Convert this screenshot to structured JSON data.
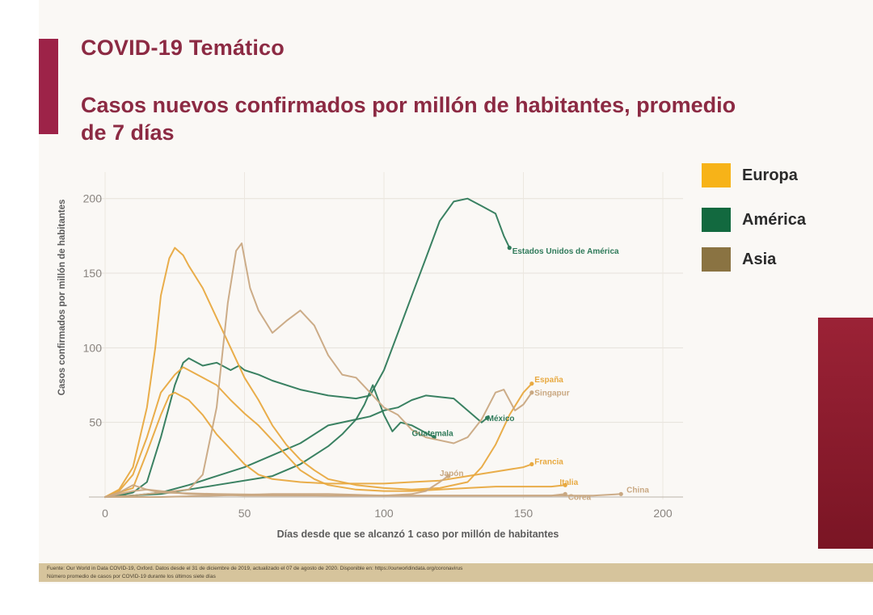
{
  "header": {
    "title": "COVID-19 Temático"
  },
  "colors": {
    "brand": "#9d2348",
    "europa": "#f2b134",
    "america": "#1a6b47",
    "asia": "#8a7440",
    "europa_line": "#e8a940",
    "america_line": "#2f7a5a",
    "asia_line": "#c9a882"
  },
  "legend": [
    {
      "label": "Europa",
      "color": "#f7b318"
    },
    {
      "label": "América",
      "color": "#12693f"
    },
    {
      "label": "Asia",
      "color": "#8a7342"
    }
  ],
  "footer": {
    "source": "Fuente: Our World in Data COVID-19, Oxford. Datos desde el 31 de diciembre de 2019, actualizado el 07 de agosto de 2020. Disponible en: https://ourworldindata.org/coronavirus",
    "note": "Número promedio de casos por COVID-19 durante los últimos siete días"
  },
  "chart_data": {
    "type": "line",
    "title": "Casos nuevos confirmados por millón de habitantes, promedio de 7 días",
    "xlabel": "Días desde que se alcanzó 1 caso por millón de habitantes",
    "ylabel": "Casos confirmados por millón de habitantes",
    "xlim": [
      0,
      200
    ],
    "ylim": [
      0,
      215
    ],
    "xticks": [
      0,
      50,
      100,
      150,
      200
    ],
    "yticks": [
      50,
      100,
      150,
      200
    ],
    "grid": true,
    "legend_position": "right",
    "series": [
      {
        "name": "Estados Unidos de América",
        "group": "america",
        "points": [
          [
            0,
            0
          ],
          [
            5,
            1
          ],
          [
            10,
            3
          ],
          [
            15,
            10
          ],
          [
            20,
            40
          ],
          [
            25,
            75
          ],
          [
            28,
            90
          ],
          [
            30,
            93
          ],
          [
            35,
            88
          ],
          [
            40,
            90
          ],
          [
            45,
            85
          ],
          [
            48,
            88
          ],
          [
            50,
            85
          ],
          [
            55,
            82
          ],
          [
            60,
            78
          ],
          [
            70,
            72
          ],
          [
            80,
            68
          ],
          [
            90,
            66
          ],
          [
            95,
            68
          ],
          [
            100,
            85
          ],
          [
            105,
            110
          ],
          [
            110,
            135
          ],
          [
            115,
            160
          ],
          [
            120,
            185
          ],
          [
            125,
            198
          ],
          [
            130,
            200
          ],
          [
            135,
            195
          ],
          [
            140,
            190
          ],
          [
            143,
            175
          ],
          [
            145,
            167
          ]
        ]
      },
      {
        "name": "México",
        "group": "america",
        "points": [
          [
            0,
            0
          ],
          [
            10,
            1
          ],
          [
            20,
            3
          ],
          [
            30,
            8
          ],
          [
            40,
            14
          ],
          [
            50,
            20
          ],
          [
            60,
            28
          ],
          [
            70,
            36
          ],
          [
            80,
            48
          ],
          [
            90,
            52
          ],
          [
            95,
            54
          ],
          [
            100,
            58
          ],
          [
            105,
            60
          ],
          [
            110,
            65
          ],
          [
            115,
            68
          ],
          [
            120,
            67
          ],
          [
            125,
            66
          ],
          [
            130,
            58
          ],
          [
            135,
            50
          ],
          [
            137,
            53
          ]
        ]
      },
      {
        "name": "Guatemala",
        "group": "america",
        "points": [
          [
            0,
            0
          ],
          [
            20,
            2
          ],
          [
            40,
            8
          ],
          [
            60,
            14
          ],
          [
            70,
            22
          ],
          [
            80,
            34
          ],
          [
            85,
            42
          ],
          [
            90,
            52
          ],
          [
            93,
            62
          ],
          [
            96,
            75
          ],
          [
            100,
            55
          ],
          [
            103,
            44
          ],
          [
            106,
            50
          ],
          [
            110,
            48
          ],
          [
            113,
            45
          ],
          [
            118,
            40
          ]
        ]
      },
      {
        "name": "España",
        "group": "europa",
        "points": [
          [
            0,
            0
          ],
          [
            5,
            5
          ],
          [
            10,
            20
          ],
          [
            15,
            60
          ],
          [
            18,
            100
          ],
          [
            20,
            135
          ],
          [
            23,
            160
          ],
          [
            25,
            167
          ],
          [
            28,
            162
          ],
          [
            30,
            155
          ],
          [
            35,
            140
          ],
          [
            40,
            120
          ],
          [
            45,
            100
          ],
          [
            50,
            80
          ],
          [
            55,
            65
          ],
          [
            60,
            48
          ],
          [
            65,
            35
          ],
          [
            70,
            25
          ],
          [
            75,
            18
          ],
          [
            80,
            12
          ],
          [
            90,
            8
          ],
          [
            100,
            6
          ],
          [
            110,
            5
          ],
          [
            120,
            6
          ],
          [
            130,
            10
          ],
          [
            135,
            20
          ],
          [
            140,
            35
          ],
          [
            145,
            55
          ],
          [
            150,
            70
          ],
          [
            153,
            76
          ]
        ]
      },
      {
        "name": "Francia",
        "group": "europa",
        "points": [
          [
            0,
            0
          ],
          [
            10,
            6
          ],
          [
            15,
            30
          ],
          [
            20,
            55
          ],
          [
            23,
            68
          ],
          [
            25,
            70
          ],
          [
            30,
            65
          ],
          [
            35,
            55
          ],
          [
            40,
            42
          ],
          [
            45,
            32
          ],
          [
            50,
            22
          ],
          [
            55,
            15
          ],
          [
            60,
            12
          ],
          [
            70,
            10
          ],
          [
            80,
            9
          ],
          [
            90,
            9
          ],
          [
            100,
            9
          ],
          [
            110,
            10
          ],
          [
            120,
            11
          ],
          [
            130,
            14
          ],
          [
            140,
            17
          ],
          [
            150,
            20
          ],
          [
            153,
            22
          ]
        ]
      },
      {
        "name": "Italia",
        "group": "europa",
        "points": [
          [
            0,
            0
          ],
          [
            5,
            4
          ],
          [
            10,
            15
          ],
          [
            15,
            40
          ],
          [
            20,
            70
          ],
          [
            25,
            82
          ],
          [
            28,
            87
          ],
          [
            30,
            85
          ],
          [
            35,
            80
          ],
          [
            40,
            75
          ],
          [
            45,
            65
          ],
          [
            50,
            56
          ],
          [
            55,
            48
          ],
          [
            60,
            38
          ],
          [
            65,
            28
          ],
          [
            70,
            18
          ],
          [
            75,
            12
          ],
          [
            80,
            8
          ],
          [
            90,
            5
          ],
          [
            100,
            4
          ],
          [
            110,
            4
          ],
          [
            120,
            5
          ],
          [
            130,
            6
          ],
          [
            140,
            7
          ],
          [
            150,
            7
          ],
          [
            160,
            7
          ],
          [
            165,
            8
          ]
        ]
      },
      {
        "name": "Singapur",
        "group": "asia",
        "points": [
          [
            0,
            0
          ],
          [
            10,
            1
          ],
          [
            20,
            3
          ],
          [
            30,
            5
          ],
          [
            35,
            15
          ],
          [
            40,
            60
          ],
          [
            44,
            130
          ],
          [
            47,
            165
          ],
          [
            49,
            170
          ],
          [
            52,
            140
          ],
          [
            55,
            125
          ],
          [
            60,
            110
          ],
          [
            65,
            118
          ],
          [
            70,
            125
          ],
          [
            75,
            115
          ],
          [
            80,
            95
          ],
          [
            85,
            82
          ],
          [
            90,
            80
          ],
          [
            95,
            70
          ],
          [
            100,
            60
          ],
          [
            105,
            55
          ],
          [
            110,
            45
          ],
          [
            115,
            40
          ],
          [
            120,
            38
          ],
          [
            125,
            36
          ],
          [
            130,
            40
          ],
          [
            135,
            52
          ],
          [
            140,
            70
          ],
          [
            143,
            72
          ],
          [
            147,
            58
          ],
          [
            150,
            62
          ],
          [
            153,
            70
          ]
        ]
      },
      {
        "name": "Japón",
        "group": "asia",
        "points": [
          [
            0,
            0
          ],
          [
            20,
            0
          ],
          [
            40,
            1
          ],
          [
            60,
            2
          ],
          [
            80,
            2
          ],
          [
            100,
            1
          ],
          [
            110,
            2
          ],
          [
            115,
            4
          ],
          [
            120,
            10
          ],
          [
            123,
            14
          ]
        ]
      },
      {
        "name": "China",
        "group": "asia",
        "points": [
          [
            0,
            0
          ],
          [
            10,
            4
          ],
          [
            15,
            5
          ],
          [
            20,
            4
          ],
          [
            30,
            2
          ],
          [
            50,
            1
          ],
          [
            100,
            1
          ],
          [
            150,
            1
          ],
          [
            175,
            1
          ],
          [
            185,
            2
          ]
        ]
      },
      {
        "name": "Corea",
        "group": "asia",
        "points": [
          [
            0,
            0
          ],
          [
            5,
            3
          ],
          [
            10,
            8
          ],
          [
            15,
            5
          ],
          [
            20,
            3
          ],
          [
            40,
            2
          ],
          [
            80,
            1
          ],
          [
            120,
            1
          ],
          [
            150,
            1
          ],
          [
            160,
            1
          ],
          [
            165,
            2
          ]
        ]
      }
    ],
    "annotations": [
      {
        "text": "Estados Unidos de América",
        "x": 146,
        "y": 163
      },
      {
        "text": "España",
        "x": 154,
        "y": 77
      },
      {
        "text": "Singapur",
        "x": 154,
        "y": 68
      },
      {
        "text": "México",
        "x": 137,
        "y": 51
      },
      {
        "text": "Guatemala",
        "x": 110,
        "y": 41
      },
      {
        "text": "Japón",
        "x": 120,
        "y": 14
      },
      {
        "text": "Francia",
        "x": 154,
        "y": 22
      },
      {
        "text": "Italia",
        "x": 163,
        "y": 8
      },
      {
        "text": "China",
        "x": 187,
        "y": 3
      },
      {
        "text": "Corea",
        "x": 166,
        "y": -2
      }
    ]
  }
}
